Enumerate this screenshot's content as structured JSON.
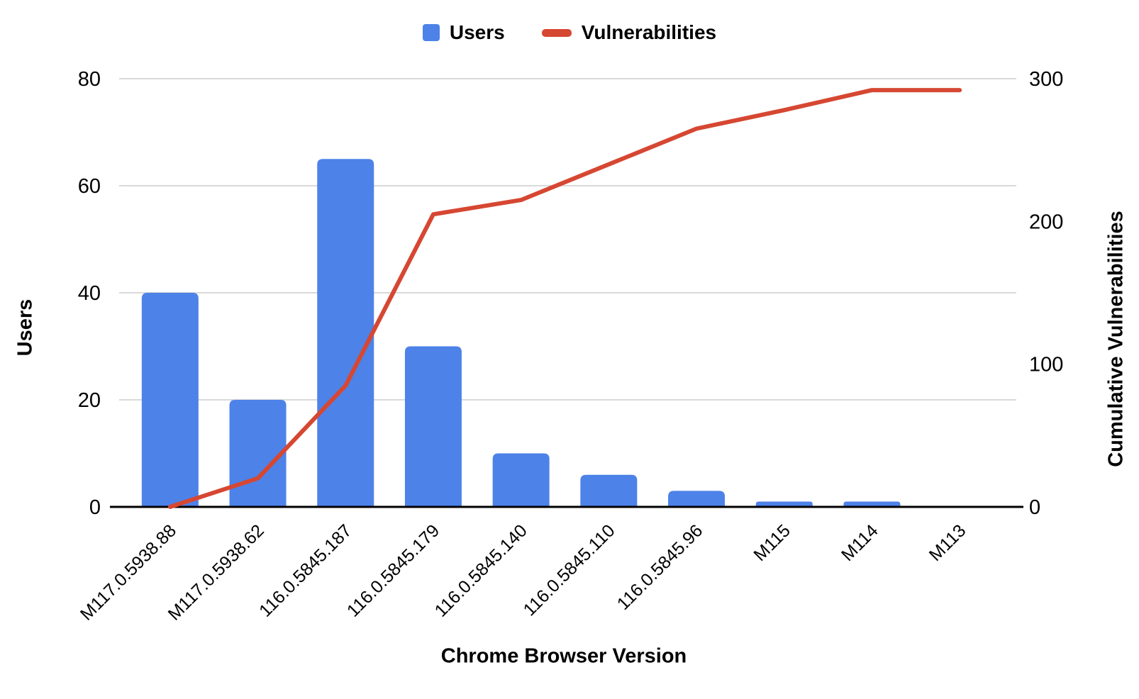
{
  "legend": {
    "users_label": "Users",
    "vulnerabilities_label": "Vulnerabilities"
  },
  "axes": {
    "left_title": "Users",
    "right_title": "Cumulative Vulnerabilities",
    "x_title": "Chrome Browser Version",
    "left_ticks": [
      0,
      20,
      40,
      60,
      80
    ],
    "right_ticks": [
      0,
      100,
      200,
      300
    ]
  },
  "colors": {
    "bar": "#4d82e8",
    "line": "#d64732",
    "gridline": "#d9d9d9",
    "baseline": "#000000",
    "text": "#000000",
    "background": "#ffffff"
  },
  "chart_data": {
    "type": "combo",
    "title": "",
    "xlabel": "Chrome Browser Version",
    "ylabel_left": "Users",
    "ylabel_right": "Cumulative Vulnerabilities",
    "ylim_left": [
      0,
      80
    ],
    "ylim_right": [
      0,
      300
    ],
    "grid": true,
    "legend_position": "top",
    "categories": [
      "M117.0.5938.88",
      "M117.0.5938.62",
      "116.0.5845.187",
      "116.0.5845.179",
      "116.0.5845.140",
      "116.0.5845.110",
      "116.0.5845.96",
      "M115",
      "M114",
      "M113"
    ],
    "series": [
      {
        "name": "Users",
        "type": "bar",
        "axis": "left",
        "values": [
          40,
          20,
          65,
          30,
          10,
          6,
          3,
          1,
          1,
          0
        ]
      },
      {
        "name": "Vulnerabilities",
        "type": "line",
        "axis": "right",
        "values": [
          0,
          20,
          85,
          205,
          215,
          240,
          265,
          278,
          292,
          292
        ]
      }
    ]
  }
}
